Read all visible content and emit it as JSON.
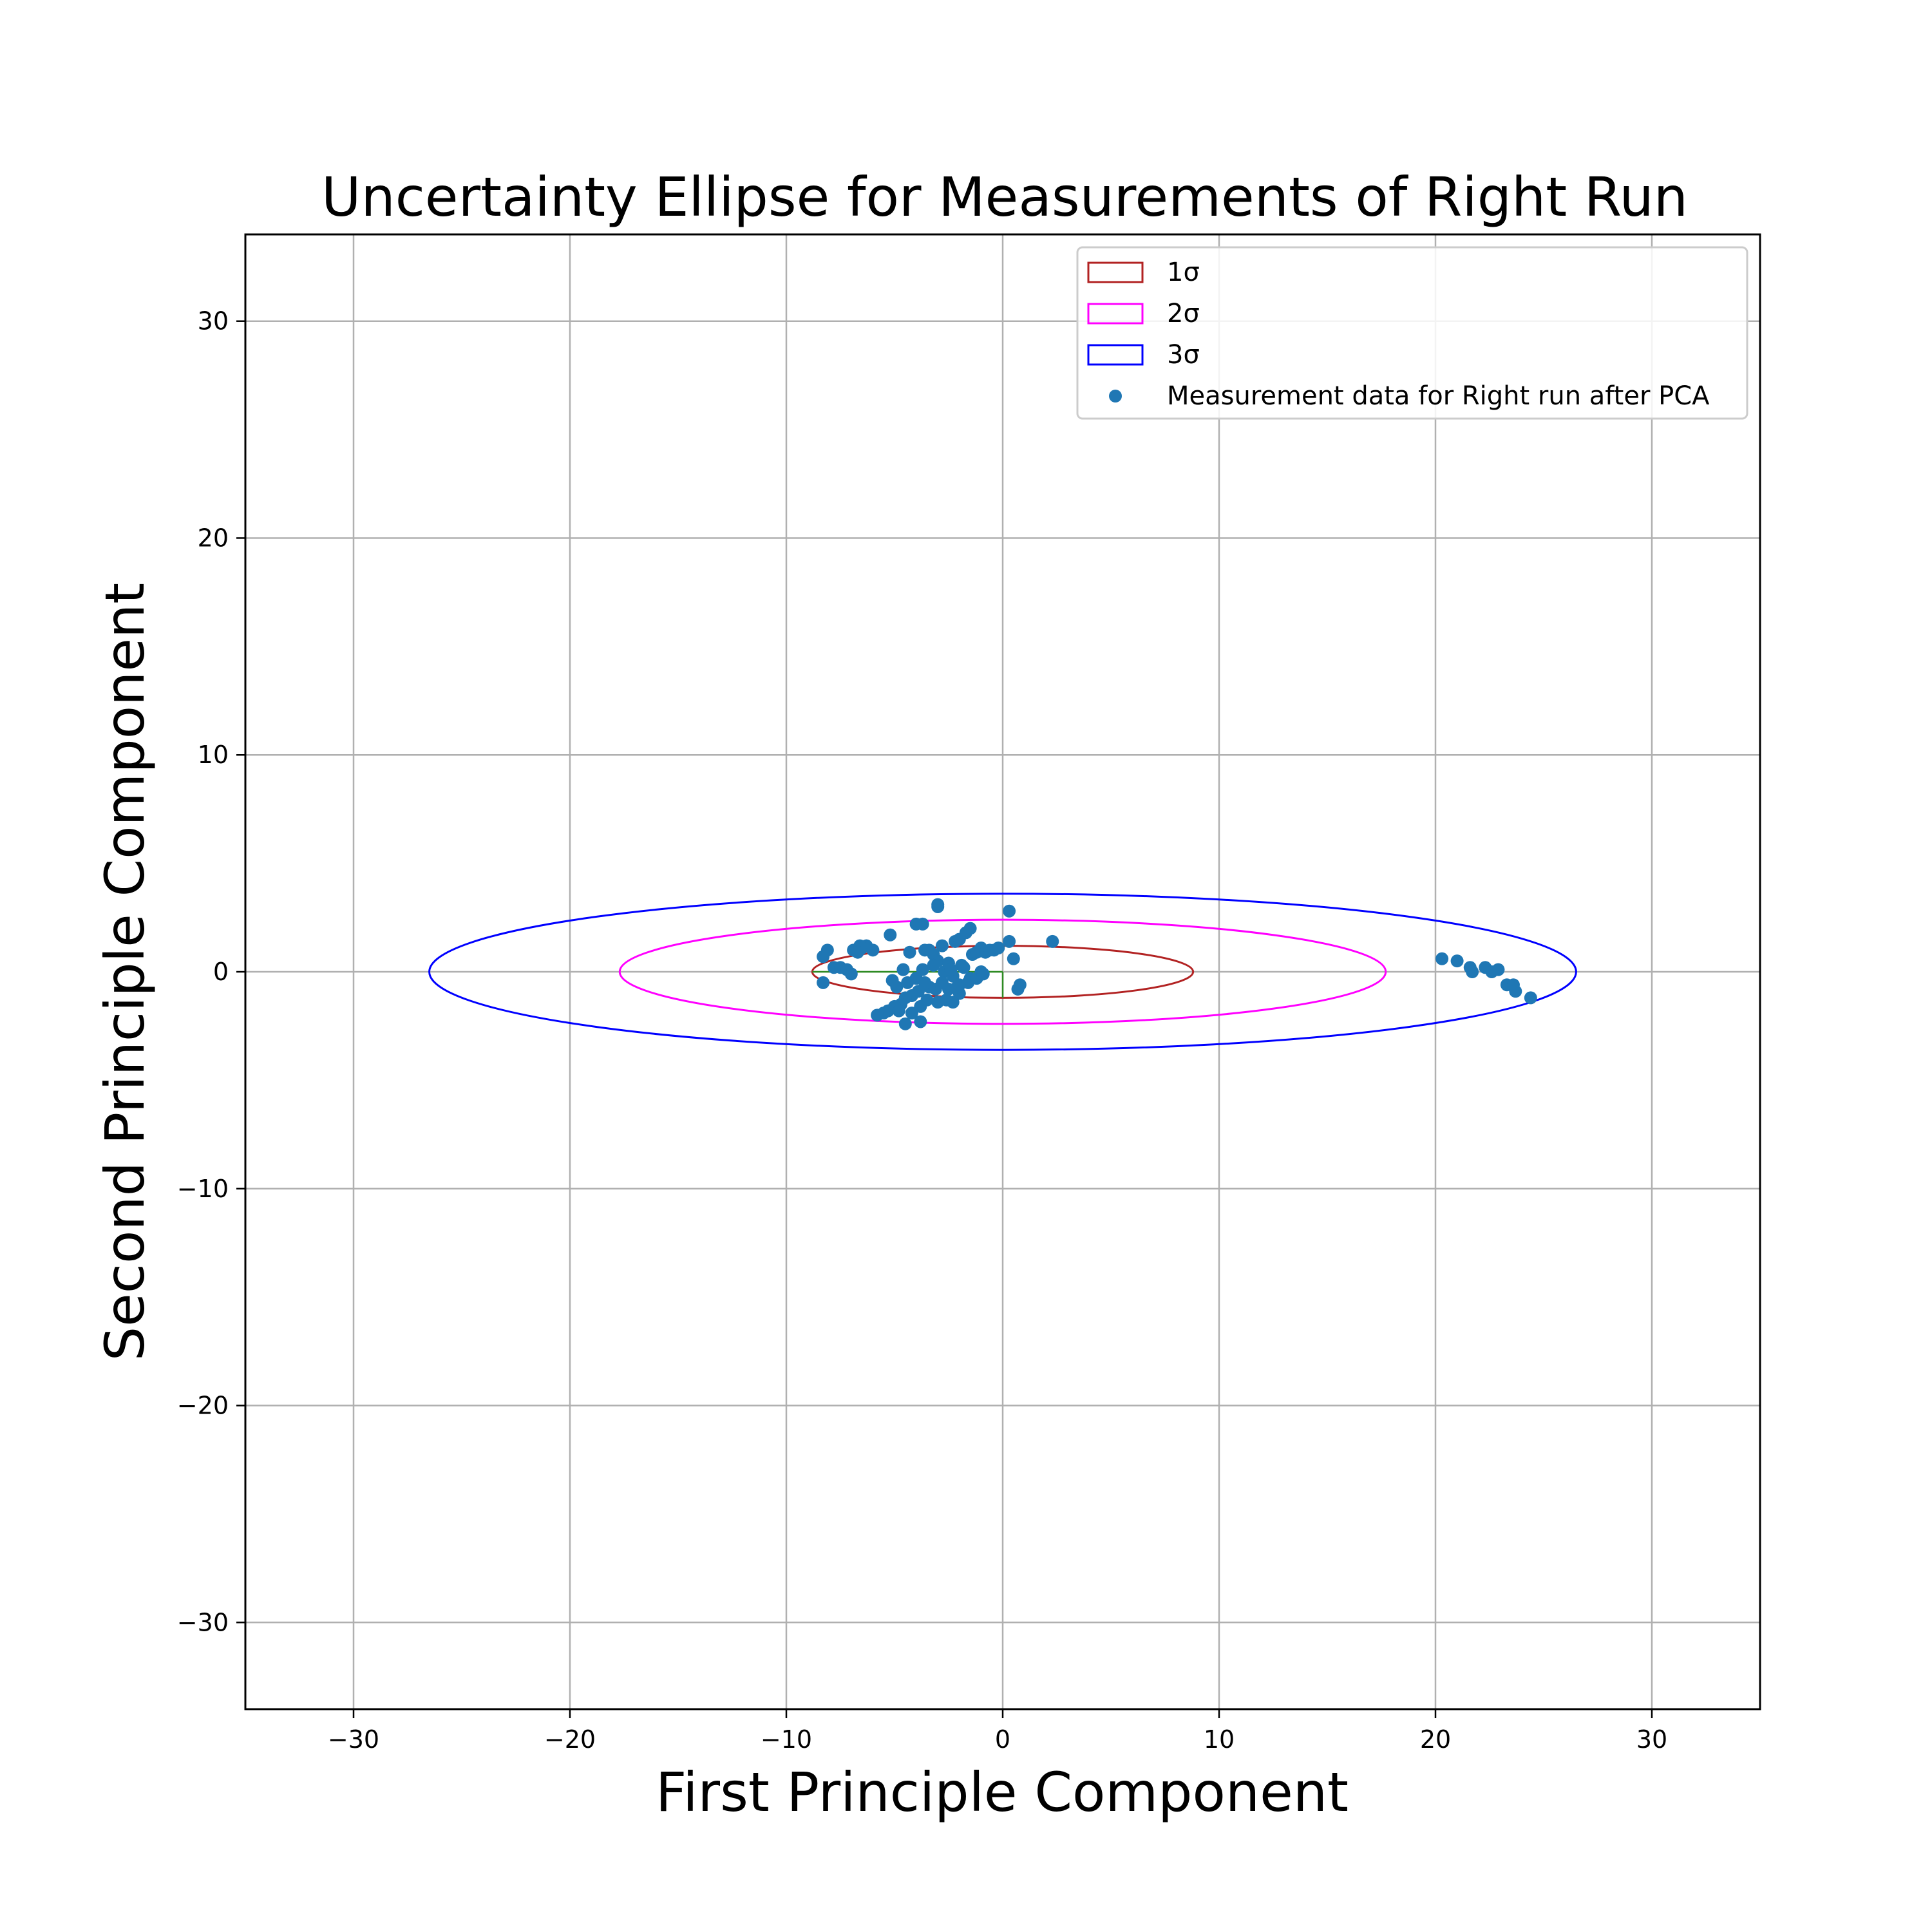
{
  "chart_data": {
    "type": "scatter",
    "title": "Uncertainty Ellipse for Measurements of Right Run",
    "xlabel": "First Principle Component",
    "ylabel": "Second Principle Component",
    "xlim": [
      -35,
      35
    ],
    "ylim": [
      -34,
      34
    ],
    "xticks": [
      -30,
      -20,
      -10,
      0,
      10,
      20,
      30
    ],
    "yticks": [
      -30,
      -20,
      -10,
      0,
      10,
      20,
      30
    ],
    "xtick_labels": [
      "−30",
      "−20",
      "−10",
      "0",
      "10",
      "20",
      "30"
    ],
    "ytick_labels": [
      "−30",
      "−20",
      "−10",
      "0",
      "10",
      "20",
      "30"
    ],
    "grid": true,
    "legend_position": "top-right",
    "ellipses": [
      {
        "name": "1σ",
        "center": [
          0,
          0
        ],
        "semi_axes": [
          8.8,
          1.2
        ],
        "color": "#b22222"
      },
      {
        "name": "2σ",
        "center": [
          0,
          0
        ],
        "semi_axes": [
          17.7,
          2.4
        ],
        "color": "#ff00ff"
      },
      {
        "name": "3σ",
        "center": [
          0,
          0
        ],
        "semi_axes": [
          26.5,
          3.6
        ],
        "color": "#0000ff"
      }
    ],
    "principal_axes": {
      "color": "#2e8b22",
      "vectors": [
        [
          -8.8,
          0
        ],
        [
          0,
          -1.2
        ]
      ]
    },
    "series": [
      {
        "name": "Measurement data for Right run after PCA",
        "color": "#1f77b4",
        "points": [
          [
            -8.3,
            0.7
          ],
          [
            -8.1,
            1.0
          ],
          [
            -8.3,
            -0.5
          ],
          [
            -7.8,
            0.2
          ],
          [
            -7.5,
            0.2
          ],
          [
            -7.2,
            0.1
          ],
          [
            -7.0,
            -0.1
          ],
          [
            -6.9,
            1.0
          ],
          [
            -6.6,
            1.2
          ],
          [
            -6.3,
            1.2
          ],
          [
            -6.5,
            1.1
          ],
          [
            -6.7,
            0.9
          ],
          [
            -6.0,
            1.0
          ],
          [
            -5.2,
            1.7
          ],
          [
            -5.1,
            -0.4
          ],
          [
            -4.9,
            -0.7
          ],
          [
            -4.6,
            0.1
          ],
          [
            -4.3,
            0.9
          ],
          [
            -4.0,
            2.2
          ],
          [
            -3.7,
            2.2
          ],
          [
            -3.6,
            1.0
          ],
          [
            -3.7,
            0.1
          ],
          [
            -3.4,
            1.0
          ],
          [
            -3.2,
            0.8
          ],
          [
            -3.0,
            0.5
          ],
          [
            -2.8,
            1.2
          ],
          [
            -2.7,
            0.0
          ],
          [
            -2.5,
            0.4
          ],
          [
            -2.2,
            1.4
          ],
          [
            -2.0,
            1.5
          ],
          [
            -1.9,
            0.3
          ],
          [
            -1.7,
            1.8
          ],
          [
            -1.5,
            2.0
          ],
          [
            -1.4,
            0.8
          ],
          [
            -1.2,
            0.9
          ],
          [
            -1.0,
            1.1
          ],
          [
            -0.8,
            0.9
          ],
          [
            -0.6,
            1.0
          ],
          [
            -0.4,
            1.0
          ],
          [
            -0.2,
            1.1
          ],
          [
            0.3,
            1.4
          ],
          [
            0.5,
            0.6
          ],
          [
            0.3,
            2.8
          ],
          [
            -3.0,
            3.1
          ],
          [
            -3.0,
            3.0
          ],
          [
            0.8,
            -0.6
          ],
          [
            0.7,
            -0.8
          ],
          [
            2.3,
            1.4
          ],
          [
            -1.0,
            0.0
          ],
          [
            -1.5,
            -0.3
          ],
          [
            -2.0,
            -0.6
          ],
          [
            -2.3,
            -0.2
          ],
          [
            -2.5,
            -0.8
          ],
          [
            -2.8,
            -0.5
          ],
          [
            -3.1,
            -0.8
          ],
          [
            -3.4,
            -0.7
          ],
          [
            -3.6,
            -0.5
          ],
          [
            -3.9,
            -0.9
          ],
          [
            -4.2,
            -1.1
          ],
          [
            -4.5,
            -1.2
          ],
          [
            -4.7,
            -1.5
          ],
          [
            -5.0,
            -1.6
          ],
          [
            -5.3,
            -1.8
          ],
          [
            -5.5,
            -1.9
          ],
          [
            -5.8,
            -2.0
          ],
          [
            -4.8,
            -1.8
          ],
          [
            -4.5,
            -2.4
          ],
          [
            -3.8,
            -2.3
          ],
          [
            -4.2,
            -1.9
          ],
          [
            -3.5,
            -1.3
          ],
          [
            -3.0,
            -1.4
          ],
          [
            -2.6,
            -1.3
          ],
          [
            -2.3,
            -1.4
          ],
          [
            -2.0,
            -1.0
          ],
          [
            -1.6,
            -0.5
          ],
          [
            -1.2,
            -0.3
          ],
          [
            -0.9,
            -0.1
          ],
          [
            -1.8,
            0.2
          ],
          [
            -2.4,
            0.1
          ],
          [
            -3.2,
            0.3
          ],
          [
            -4.0,
            -0.3
          ],
          [
            -4.4,
            -0.5
          ],
          [
            -3.8,
            -1.6
          ],
          [
            -2.1,
            -0.7
          ],
          [
            20.3,
            0.6
          ],
          [
            21.0,
            0.5
          ],
          [
            21.6,
            0.2
          ],
          [
            21.7,
            0.0
          ],
          [
            22.3,
            0.2
          ],
          [
            22.6,
            0.0
          ],
          [
            22.9,
            0.1
          ],
          [
            23.3,
            -0.6
          ],
          [
            23.6,
            -0.6
          ],
          [
            23.7,
            -0.9
          ],
          [
            24.4,
            -1.2
          ]
        ]
      }
    ],
    "legend": [
      {
        "label": "1σ",
        "kind": "rect",
        "color": "#b22222"
      },
      {
        "label": "2σ",
        "kind": "rect",
        "color": "#ff00ff"
      },
      {
        "label": "3σ",
        "kind": "rect",
        "color": "#0000ff"
      },
      {
        "label": "Measurement data for Right run after PCA",
        "kind": "dot",
        "color": "#1f77b4"
      }
    ]
  }
}
